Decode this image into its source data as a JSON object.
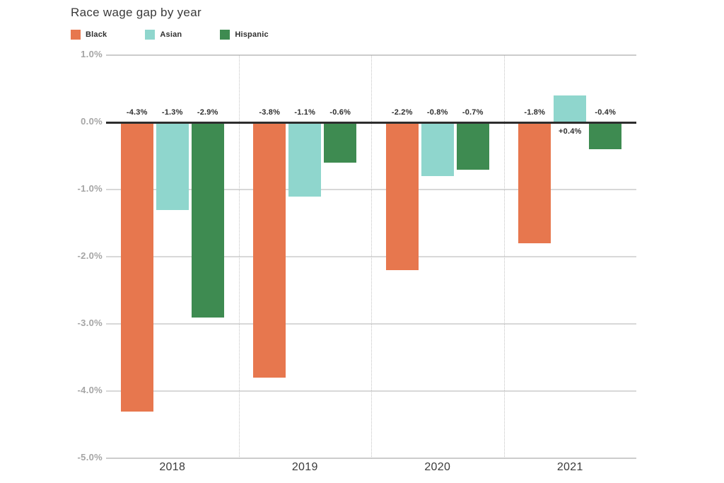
{
  "chart_data": {
    "type": "bar",
    "title": "Race wage gap by year",
    "categories": [
      "2018",
      "2019",
      "2020",
      "2021"
    ],
    "series": [
      {
        "name": "Black",
        "color": "#E7774E",
        "values": [
          -4.3,
          -3.8,
          -2.2,
          -1.8
        ],
        "labels": [
          "-4.3%",
          "-3.8%",
          "-2.2%",
          "-1.8%"
        ]
      },
      {
        "name": "Asian",
        "color": "#8FD6CD",
        "values": [
          -1.3,
          -1.1,
          -0.8,
          0.4
        ],
        "labels": [
          "-1.3%",
          "-1.1%",
          "-0.8%",
          "+0.4%"
        ]
      },
      {
        "name": "Hispanic",
        "color": "#3E8B51",
        "values": [
          -2.9,
          -0.6,
          -0.7,
          -0.4
        ],
        "labels": [
          "-2.9%",
          "-0.6%",
          "-0.7%",
          "-0.4%"
        ]
      }
    ],
    "y_ticks": [
      {
        "value": 1,
        "label": "1.0%"
      },
      {
        "value": 0,
        "label": "0.0%"
      },
      {
        "value": -1,
        "label": "-1.0%"
      },
      {
        "value": -2,
        "label": "-2.0%"
      },
      {
        "value": -3,
        "label": "-3.0%"
      },
      {
        "value": -4,
        "label": "-4.0%"
      },
      {
        "value": -5,
        "label": "-5.0%"
      }
    ],
    "ylim": [
      -5,
      1
    ],
    "xlabel": "",
    "ylabel": "",
    "grid": true,
    "legend_position": "top-left",
    "value_label_format": "signed percent, outside bar relative to zero line"
  }
}
